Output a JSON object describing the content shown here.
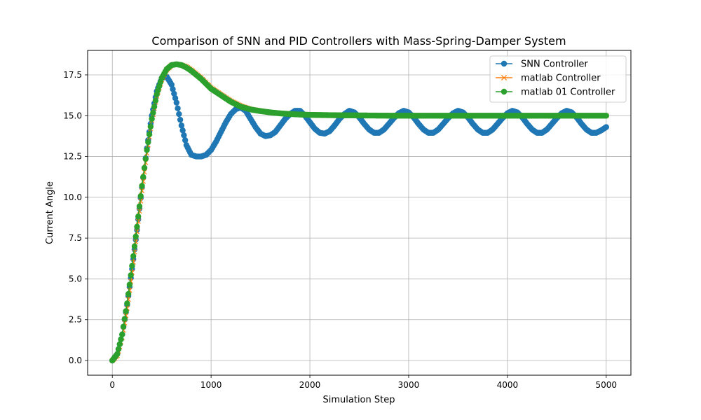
{
  "chart_data": {
    "type": "line",
    "title": "Comparison of SNN and PID Controllers with Mass-Spring-Damper System",
    "xlabel": "Simulation Step",
    "ylabel": "Current Angle",
    "xlim": [
      -250,
      5250
    ],
    "ylim": [
      -0.9,
      19.0
    ],
    "xticks": [
      0,
      1000,
      2000,
      3000,
      4000,
      5000
    ],
    "xtick_labels": [
      "0",
      "1000",
      "2000",
      "3000",
      "4000",
      "5000"
    ],
    "yticks": [
      0.0,
      2.5,
      5.0,
      7.5,
      10.0,
      12.5,
      15.0,
      17.5
    ],
    "ytick_labels": [
      "0.0",
      "2.5",
      "5.0",
      "7.5",
      "10.0",
      "12.5",
      "15.0",
      "17.5"
    ],
    "grid": true,
    "legend_position": "top-right",
    "series": [
      {
        "name": "SNN Controller",
        "color": "#1f77b4",
        "marker": "circle",
        "x": [
          0,
          50,
          100,
          150,
          200,
          250,
          300,
          350,
          400,
          450,
          500,
          550,
          600,
          650,
          700,
          750,
          800,
          850,
          900,
          950,
          1000,
          1050,
          1100,
          1150,
          1200,
          1250,
          1300,
          1350,
          1400,
          1450,
          1500,
          1550,
          1600,
          1650,
          1700,
          1750,
          1800,
          1850,
          1900,
          1950,
          2000,
          2050,
          2100,
          2150,
          2200,
          2250,
          2300,
          2350,
          2400,
          2450,
          2500,
          2550,
          2600,
          2650,
          2700,
          2750,
          2800,
          2850,
          2900,
          2950,
          3000,
          3050,
          3100,
          3150,
          3200,
          3250,
          3300,
          3350,
          3400,
          3450,
          3500,
          3550,
          3600,
          3650,
          3700,
          3750,
          3800,
          3850,
          3900,
          3950,
          4000,
          4050,
          4100,
          4150,
          4200,
          4250,
          4300,
          4350,
          4400,
          4450,
          4500,
          4550,
          4600,
          4650,
          4700,
          4750,
          4800,
          4850,
          4900,
          4950,
          5000
        ],
        "y": [
          0.0,
          0.4,
          1.6,
          3.4,
          5.6,
          8.0,
          10.6,
          13.0,
          15.0,
          16.5,
          17.3,
          17.4,
          16.9,
          15.8,
          14.4,
          13.2,
          12.6,
          12.5,
          12.5,
          12.6,
          12.9,
          13.4,
          14.0,
          14.6,
          15.1,
          15.4,
          15.5,
          15.3,
          14.8,
          14.3,
          13.9,
          13.75,
          13.8,
          14.0,
          14.4,
          14.8,
          15.1,
          15.3,
          15.3,
          15.0,
          14.6,
          14.2,
          13.95,
          13.9,
          14.05,
          14.4,
          14.8,
          15.1,
          15.3,
          15.2,
          14.9,
          14.5,
          14.15,
          13.95,
          13.95,
          14.15,
          14.5,
          14.85,
          15.15,
          15.3,
          15.2,
          14.9,
          14.5,
          14.15,
          13.95,
          13.95,
          14.15,
          14.5,
          14.85,
          15.15,
          15.3,
          15.2,
          14.9,
          14.5,
          14.15,
          13.95,
          13.95,
          14.15,
          14.5,
          14.85,
          15.15,
          15.3,
          15.2,
          14.9,
          14.5,
          14.15,
          13.95,
          13.95,
          14.15,
          14.5,
          14.85,
          15.15,
          15.3,
          15.2,
          14.9,
          14.5,
          14.15,
          13.95,
          13.95,
          14.1,
          14.3
        ]
      },
      {
        "name": "matlab Controller",
        "color": "#ff7f0e",
        "marker": "x",
        "x": [
          0,
          50,
          100,
          150,
          200,
          250,
          300,
          350,
          400,
          450,
          500,
          550,
          600,
          650,
          700,
          750,
          800,
          850,
          900,
          950,
          1000,
          1100,
          1200,
          1300,
          1400,
          1500,
          1600,
          1700,
          1800,
          1900,
          2000,
          2200,
          2400,
          2600,
          2800,
          3000,
          3500,
          4000,
          4500,
          5000
        ],
        "y": [
          0.0,
          0.3,
          1.4,
          3.2,
          5.4,
          7.9,
          10.4,
          12.7,
          14.7,
          16.2,
          17.2,
          17.8,
          18.1,
          18.15,
          18.1,
          18.0,
          17.8,
          17.55,
          17.3,
          17.0,
          16.7,
          16.3,
          15.9,
          15.6,
          15.4,
          15.3,
          15.2,
          15.15,
          15.1,
          15.08,
          15.06,
          15.04,
          15.02,
          15.01,
          15.0,
          15.0,
          15.0,
          15.0,
          15.0,
          15.0
        ]
      },
      {
        "name": "matlab 01 Controller",
        "color": "#2ca02c",
        "marker": "circle",
        "x": [
          0,
          50,
          100,
          150,
          200,
          250,
          300,
          350,
          400,
          450,
          500,
          550,
          600,
          650,
          700,
          750,
          800,
          850,
          900,
          950,
          1000,
          1100,
          1200,
          1300,
          1400,
          1500,
          1600,
          1700,
          1800,
          1900,
          2000,
          2200,
          2400,
          2600,
          2800,
          3000,
          3500,
          4000,
          4500,
          5000
        ],
        "y": [
          0.0,
          0.4,
          1.6,
          3.5,
          5.8,
          8.2,
          10.7,
          12.9,
          14.8,
          16.3,
          17.3,
          17.85,
          18.1,
          18.15,
          18.1,
          17.95,
          17.75,
          17.5,
          17.25,
          16.95,
          16.65,
          16.25,
          15.85,
          15.55,
          15.38,
          15.28,
          15.2,
          15.14,
          15.1,
          15.07,
          15.05,
          15.03,
          15.02,
          15.01,
          15.0,
          15.0,
          15.0,
          15.0,
          15.0,
          15.0
        ]
      }
    ]
  }
}
